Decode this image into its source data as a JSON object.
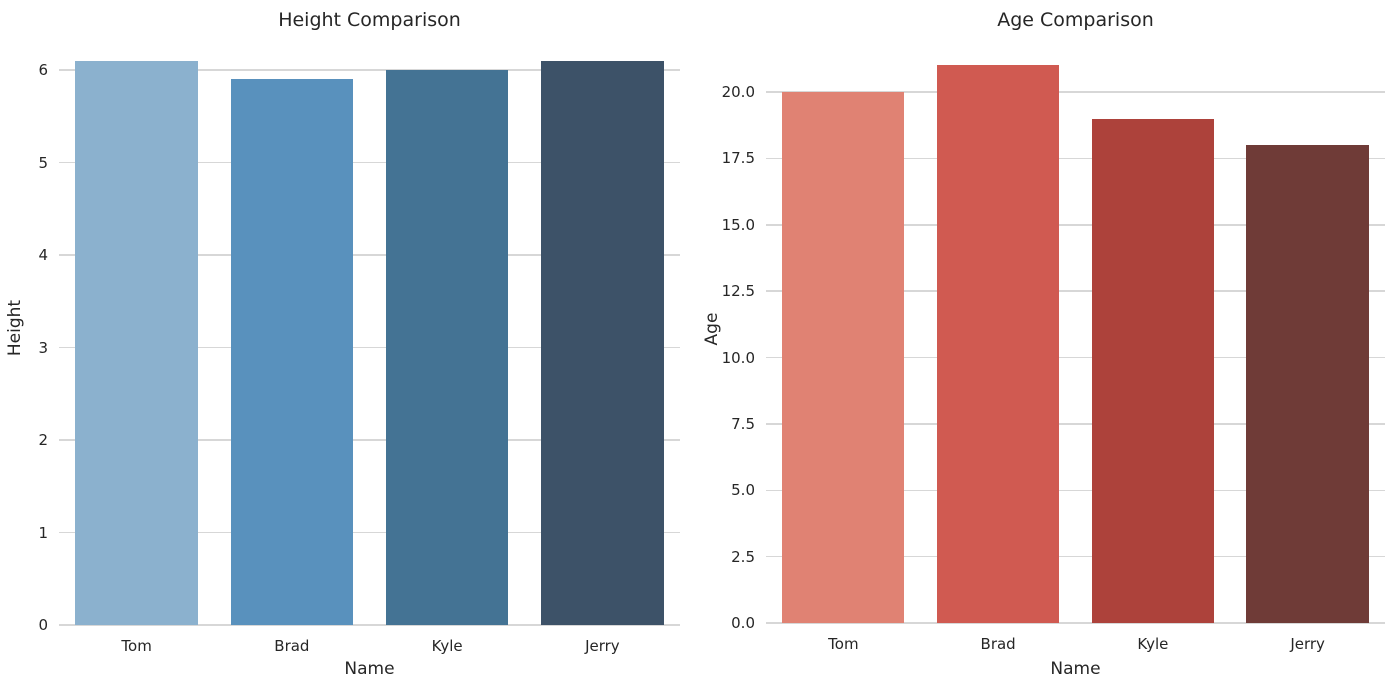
{
  "figure": {
    "background_color": "#ffffff",
    "grid_color": "#d7d7d7",
    "text_color": "#262626"
  },
  "chart_data": [
    {
      "type": "bar",
      "title": "Height Comparison",
      "xlabel": "Name",
      "ylabel": "Height",
      "categories": [
        "Tom",
        "Brad",
        "Kyle",
        "Jerry"
      ],
      "values": [
        6.1,
        5.9,
        6.0,
        6.1
      ],
      "bar_colors": [
        "#8bb1ce",
        "#5991bd",
        "#447394",
        "#3d5268"
      ],
      "ylim": [
        0,
        6.4
      ],
      "yticks": [
        0,
        1,
        2,
        3,
        4,
        5,
        6
      ],
      "ytick_labels": [
        "0",
        "1",
        "2",
        "3",
        "4",
        "5",
        "6"
      ],
      "grid": true,
      "legend": null
    },
    {
      "type": "bar",
      "title": "Age Comparison",
      "xlabel": "Name",
      "ylabel": "Age",
      "categories": [
        "Tom",
        "Brad",
        "Kyle",
        "Jerry"
      ],
      "values": [
        20,
        21,
        19,
        18
      ],
      "bar_colors": [
        "#e08273",
        "#d05a51",
        "#ad423b",
        "#6f3b37"
      ],
      "ylim": [
        0,
        22.05
      ],
      "yticks": [
        0,
        2.5,
        5,
        7.5,
        10,
        12.5,
        15,
        17.5,
        20
      ],
      "ytick_labels": [
        "0.0",
        "2.5",
        "5.0",
        "7.5",
        "10.0",
        "12.5",
        "15.0",
        "17.5",
        "20.0"
      ],
      "grid": true,
      "legend": null
    }
  ]
}
